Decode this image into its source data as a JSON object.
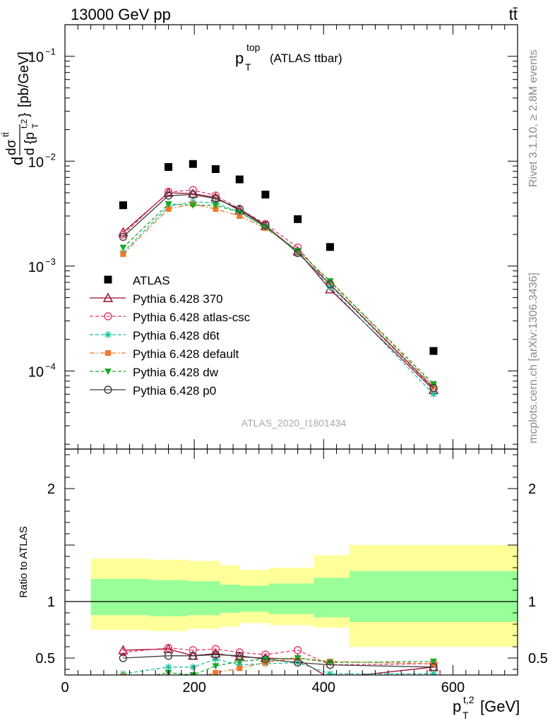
{
  "header": {
    "left": "13000 GeV pp",
    "right": "tt̄"
  },
  "side_labels": {
    "rivet": "Rivet 3.1.10, ≥ 2.8M events",
    "mcplots": "mcplots.cern.ch [arXiv:1306.3436]"
  },
  "chart_data": [
    {
      "type": "line",
      "panel": "main",
      "title_main": "p",
      "title_sup": "top",
      "title_sub": "T",
      "title_rest": "(ATLAS ttbar)",
      "watermark": "ATLAS_2020_I1801434",
      "ylabel": "d dσ^{tt̄} / d {p_T^{t,2}} [pb/GeV]",
      "ylabel_parts": {
        "top": "dσ",
        "top_sup": "tt̄",
        "bottom": "d {p",
        "bottom_sub": "T",
        "bottom_sup": "t,2",
        "bottom_close": "}",
        "unit": "[pb/GeV]",
        "prefix": "d"
      },
      "yscale": "log",
      "ylim": [
        1.8e-05,
        0.2
      ],
      "xlim": [
        0,
        700
      ],
      "yticks": [
        {
          "value": 0.1,
          "base": "10",
          "exp": "−1"
        },
        {
          "value": 0.01,
          "base": "10",
          "exp": "−2"
        },
        {
          "value": 0.001,
          "base": "10",
          "exp": "−3"
        },
        {
          "value": 0.0001,
          "base": "10",
          "exp": "−4"
        }
      ],
      "x": [
        90,
        160,
        198,
        233,
        270,
        310,
        360,
        410,
        570
      ],
      "data": {
        "name": "ATLAS",
        "values": [
          0.0038,
          0.0088,
          0.0094,
          0.0084,
          0.0067,
          0.0048,
          0.0028,
          0.00152,
          0.000155
        ]
      },
      "series": [
        {
          "name": "Pythia 6.428 370",
          "color": "#9a0b2a",
          "marker": "triangle-open",
          "dash": "solid",
          "values": [
            0.0021,
            0.005,
            0.0049,
            0.0045,
            0.0034,
            0.0024,
            0.00138,
            0.0006,
            6.6e-05
          ]
        },
        {
          "name": "Pythia 6.428 atlas-csc",
          "color": "#e8386b",
          "marker": "circle-open",
          "dash": "dashed",
          "values": [
            0.002,
            0.0051,
            0.0053,
            0.0047,
            0.0035,
            0.00252,
            0.0015,
            0.00066,
            6.8e-05
          ]
        },
        {
          "name": "Pythia 6.428 d6t",
          "color": "#19c0a0",
          "marker": "star",
          "dash": "dashed",
          "values": [
            0.00135,
            0.0037,
            0.0041,
            0.004,
            0.00325,
            0.00236,
            0.00136,
            0.00063,
            6e-05
          ]
        },
        {
          "name": "Pythia 6.428 default",
          "color": "#f0782a",
          "marker": "square",
          "dash": "dashdot",
          "values": [
            0.0013,
            0.0035,
            0.0039,
            0.0035,
            0.003,
            0.0023,
            0.0014,
            0.00071,
            7.2e-05
          ]
        },
        {
          "name": "Pythia 6.428 dw",
          "color": "#1aa828",
          "marker": "triangle-down",
          "dash": "dashed",
          "values": [
            0.0015,
            0.0039,
            0.0038,
            0.0038,
            0.00325,
            0.00235,
            0.0014,
            0.00072,
            7.5e-05
          ]
        },
        {
          "name": "Pythia 6.428 p0",
          "color": "#3c3c3c",
          "marker": "circle-open",
          "dash": "solid",
          "values": [
            0.0019,
            0.0047,
            0.0048,
            0.0044,
            0.0035,
            0.00245,
            0.00133,
            0.00067,
            6.9e-05
          ]
        }
      ],
      "legend_position": "bottom-left"
    },
    {
      "type": "line",
      "panel": "ratio",
      "ylabel": "Ratio to ATLAS",
      "xlabel": "p_T^{t,2} [GeV]",
      "xlabel_parts": {
        "main": "p",
        "sup": "t,2",
        "sub": "T",
        "unit": "[GeV]"
      },
      "xlim": [
        0,
        700
      ],
      "ylim": [
        0.35,
        2.35
      ],
      "xticks": [
        0,
        200,
        400,
        600
      ],
      "yticks": [
        0.5,
        1,
        2
      ],
      "reference_line": 1,
      "bins": [
        40,
        130,
        190,
        240,
        270,
        315,
        385,
        440,
        700
      ],
      "band_outer": [
        {
          "low": 0.75,
          "high": 1.38
        },
        {
          "low": 0.74,
          "high": 1.37
        },
        {
          "low": 0.76,
          "high": 1.36
        },
        {
          "low": 0.78,
          "high": 1.32
        },
        {
          "low": 0.81,
          "high": 1.28
        },
        {
          "low": 0.79,
          "high": 1.3
        },
        {
          "low": 0.77,
          "high": 1.41
        },
        {
          "low": 0.6,
          "high": 1.5
        }
      ],
      "band_inner": [
        {
          "low": 0.88,
          "high": 1.2
        },
        {
          "low": 0.87,
          "high": 1.19
        },
        {
          "low": 0.88,
          "high": 1.18
        },
        {
          "low": 0.9,
          "high": 1.15
        },
        {
          "low": 0.91,
          "high": 1.14
        },
        {
          "low": 0.89,
          "high": 1.16
        },
        {
          "low": 0.86,
          "high": 1.21
        },
        {
          "low": 0.82,
          "high": 1.27
        }
      ],
      "x": [
        90,
        160,
        198,
        233,
        270,
        310,
        360,
        410,
        570
      ],
      "series": [
        {
          "name": "Pythia 6.428 370",
          "values": [
            0.57,
            0.58,
            0.52,
            0.54,
            0.51,
            0.5,
            0.49,
            0.32,
            0.42
          ]
        },
        {
          "name": "Pythia 6.428 atlas-csc",
          "values": [
            0.55,
            0.59,
            0.57,
            0.58,
            0.55,
            0.53,
            0.57,
            0.44,
            0.45
          ]
        },
        {
          "name": "Pythia 6.428 d6t",
          "values": [
            0.36,
            0.42,
            0.42,
            0.49,
            0.44,
            0.45,
            0.46,
            0.36,
            0.36
          ]
        },
        {
          "name": "Pythia 6.428 default",
          "values": [
            0.34,
            0.33,
            0.32,
            0.37,
            0.41,
            0.46,
            0.5,
            0.47,
            0.45
          ]
        },
        {
          "name": "Pythia 6.428 dw",
          "values": [
            0.3,
            0.37,
            0.35,
            0.43,
            0.47,
            0.49,
            0.5,
            0.46,
            0.47
          ]
        },
        {
          "name": "Pythia 6.428 p0",
          "values": [
            0.5,
            0.52,
            0.52,
            0.53,
            0.52,
            0.49,
            0.46,
            0.44,
            0.42
          ]
        }
      ]
    }
  ]
}
